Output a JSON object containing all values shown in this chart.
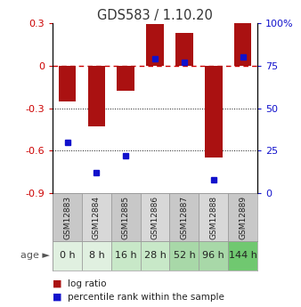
{
  "title": "GDS583 / 1.10.20",
  "samples": [
    "GSM12883",
    "GSM12884",
    "GSM12885",
    "GSM12886",
    "GSM12887",
    "GSM12888",
    "GSM12889"
  ],
  "ages": [
    "0 h",
    "8 h",
    "16 h",
    "28 h",
    "52 h",
    "96 h",
    "144 h"
  ],
  "log_ratio": [
    -0.25,
    -0.43,
    -0.18,
    0.29,
    0.23,
    -0.65,
    0.3
  ],
  "percentile_rank": [
    30,
    12,
    22,
    79,
    77,
    8,
    80
  ],
  "bar_color": "#aa1111",
  "dot_color": "#1111cc",
  "ylim_left": [
    -0.9,
    0.3
  ],
  "ylim_right": [
    0,
    100
  ],
  "yticks_left": [
    -0.9,
    -0.6,
    -0.3,
    0.0,
    0.3
  ],
  "ytick_labels_left": [
    "-0.9",
    "-0.6",
    "-0.3",
    "0",
    "0.3"
  ],
  "ytick_labels_right": [
    "0",
    "25",
    "50",
    "75",
    "100%"
  ],
  "age_bg_colors": [
    "#e0f0e0",
    "#e0f0e0",
    "#c8e8c8",
    "#c8e8c8",
    "#a8d8a8",
    "#a8d8a8",
    "#70c870"
  ],
  "sample_bg_colors": [
    "#c8c8c8",
    "#d8d8d8",
    "#c8c8c8",
    "#d8d8d8",
    "#c8c8c8",
    "#d8d8d8",
    "#c8c8c8"
  ],
  "grid_zero_color": "#cc0000",
  "grid_line_color": "#111111",
  "title_color": "#333333",
  "bar_width": 0.6
}
